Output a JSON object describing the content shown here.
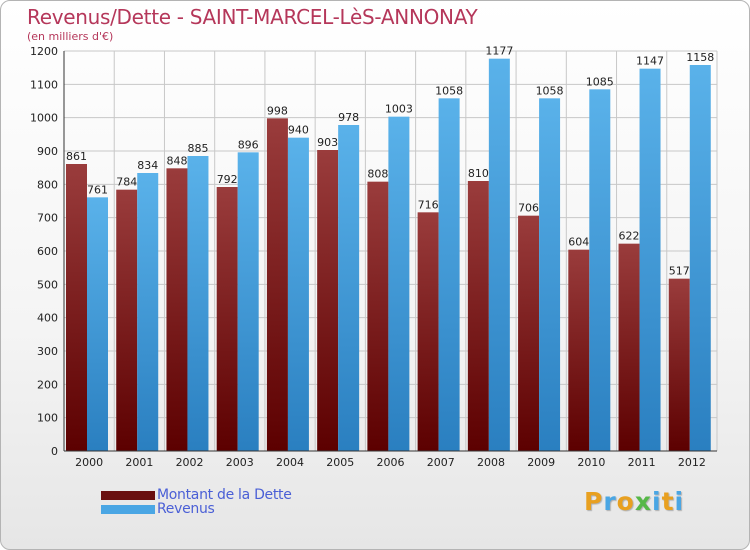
{
  "header": {
    "title": "Revenus/Dette - SAINT-MARCEL-LèS-ANNONAY",
    "subtitle": "(en milliers d'€)"
  },
  "colors": {
    "title": "#b5375a",
    "debt_dark": "#5c0000",
    "debt_light": "#9a3c3c",
    "revenue_dark": "#2a7fc0",
    "revenue_light": "#5ab2ea",
    "legend_text": "#4a5fd6"
  },
  "chart_data": {
    "type": "bar",
    "title": "Revenus/Dette - SAINT-MARCEL-LèS-ANNONAY",
    "subtitle": "(en milliers d'€)",
    "xlabel": "",
    "ylabel": "",
    "ylim": [
      0,
      1200
    ],
    "yticks": [
      0,
      100,
      200,
      300,
      400,
      500,
      600,
      700,
      800,
      900,
      1000,
      1100,
      1200
    ],
    "grid": true,
    "legend_position": "bottom-left",
    "categories": [
      "2000",
      "2001",
      "2002",
      "2003",
      "2004",
      "2005",
      "2006",
      "2007",
      "2008",
      "2009",
      "2010",
      "2011",
      "2012"
    ],
    "series": [
      {
        "name": "Montant de la Dette",
        "values": [
          861,
          784,
          848,
          792,
          998,
          903,
          808,
          716,
          810,
          706,
          604,
          622,
          517
        ]
      },
      {
        "name": "Revenus",
        "values": [
          761,
          834,
          885,
          896,
          940,
          978,
          1003,
          1058,
          1177,
          1058,
          1085,
          1147,
          1158
        ]
      }
    ]
  },
  "legend": {
    "items": [
      {
        "label": "Montant de la Dette",
        "color": "#6a1010"
      },
      {
        "label": "Revenus",
        "color": "#4aa6e4"
      }
    ]
  },
  "logo": {
    "text": "Proxiti",
    "letter_colors": [
      "#e8a020",
      "#4aa6e4",
      "#e8a020",
      "#56b848",
      "#4aa6e4",
      "#e8a020",
      "#4aa6e4"
    ]
  }
}
